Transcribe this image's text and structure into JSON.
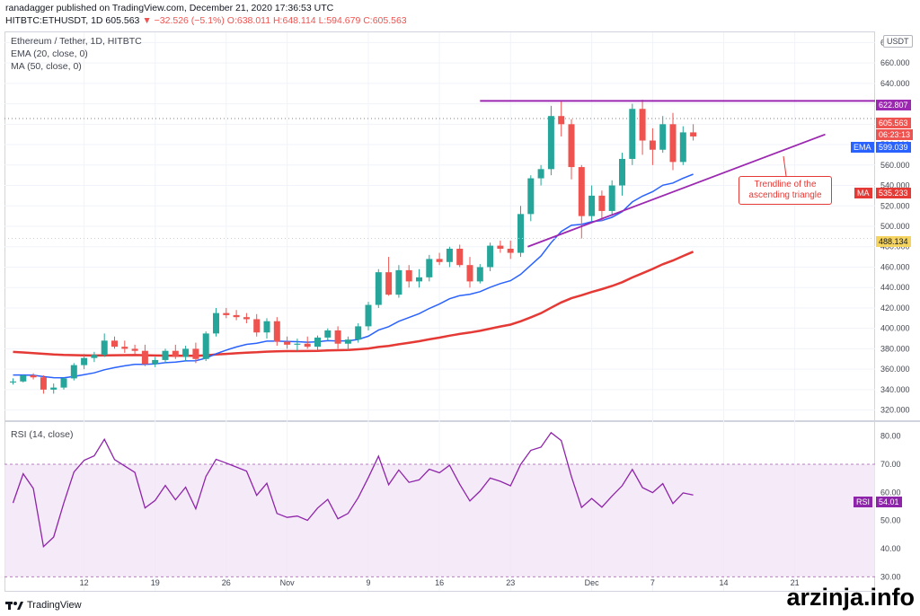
{
  "header": {
    "line1": "ranadagger published on TradingView.com, December 21, 2020 17:36:53 UTC",
    "line2_prefix": "HITBTC:ETHUSDT, 1D 605.563",
    "change": "−32.526 (−5.1%)",
    "ohlc": "O:638.011 H:648.114 L:594.679 C:605.563"
  },
  "legend": {
    "symbol": "Ethereum / Tether, 1D, HITBTC",
    "ema": "EMA (20, close, 0)",
    "ma": "MA (50, close, 0)",
    "rsi": "RSI (14, close)"
  },
  "currency": "USDT",
  "price_tags": {
    "resistance": "622.807",
    "last": "605.563",
    "countdown": "06:23:13",
    "ema_label": "EMA",
    "ema_value": "599.039",
    "ma_label": "MA",
    "ma_value": "535.233",
    "support": "488.134",
    "rsi_label": "RSI",
    "rsi_value": "54.01"
  },
  "annotation": {
    "line1": "Trendline of the",
    "line2": "ascending triangle"
  },
  "brand": "TradingView",
  "watermark": "arzinja.info",
  "colors": {
    "up": "#26a69a",
    "down": "#ef5350",
    "ema": "#2962ff",
    "ma": "#e53935",
    "trendline": "#9c27b0",
    "rsi_fill": "#f3e5f5",
    "rsi_line": "#8e24aa"
  },
  "chart_data": [
    {
      "type": "candlestick",
      "title": "Ethereum / Tether, 1D, HITBTC",
      "price_ticks": [
        320,
        340,
        360,
        380,
        400,
        420,
        440,
        460,
        480,
        500,
        520,
        540,
        560,
        580,
        600,
        620,
        640,
        660,
        680
      ],
      "price_tick_labels": [
        "320.000",
        "340.000",
        "360.000",
        "380.000",
        "400.000",
        "420.000",
        "440.000",
        "460.000",
        "480.000",
        "500.000",
        "520.000",
        "540.000",
        "560.000",
        "580.000",
        "600.000",
        "620.000",
        "640.000",
        "660.000",
        "680.000"
      ],
      "x_labels": [
        "12",
        "19",
        "26",
        "Nov",
        "9",
        "16",
        "23",
        "Dec",
        "7",
        "14",
        "21"
      ],
      "x_label_index": [
        7,
        14,
        21,
        27,
        35,
        42,
        49,
        57,
        63,
        70,
        77
      ],
      "ylim": [
        310,
        690
      ],
      "candles": [
        [
          347,
          351,
          345,
          348
        ],
        [
          348,
          355,
          347,
          354
        ],
        [
          354,
          356,
          350,
          352
        ],
        [
          352,
          354,
          336,
          340
        ],
        [
          340,
          346,
          336,
          342
        ],
        [
          342,
          352,
          340,
          351
        ],
        [
          351,
          366,
          349,
          364
        ],
        [
          364,
          375,
          360,
          371
        ],
        [
          371,
          377,
          367,
          374
        ],
        [
          374,
          395,
          372,
          388
        ],
        [
          388,
          392,
          380,
          382
        ],
        [
          382,
          388,
          376,
          380
        ],
        [
          380,
          384,
          375,
          378
        ],
        [
          378,
          384,
          363,
          365
        ],
        [
          365,
          372,
          362,
          369
        ],
        [
          369,
          380,
          366,
          378
        ],
        [
          378,
          384,
          370,
          372
        ],
        [
          372,
          383,
          368,
          380
        ],
        [
          380,
          386,
          366,
          370
        ],
        [
          370,
          397,
          368,
          395
        ],
        [
          395,
          420,
          392,
          415
        ],
        [
          415,
          420,
          410,
          413
        ],
        [
          413,
          418,
          408,
          411
        ],
        [
          411,
          415,
          405,
          409
        ],
        [
          409,
          414,
          392,
          396
        ],
        [
          396,
          410,
          390,
          407
        ],
        [
          407,
          411,
          383,
          387
        ],
        [
          387,
          392,
          380,
          384
        ],
        [
          384,
          390,
          378,
          385
        ],
        [
          385,
          392,
          380,
          382
        ],
        [
          382,
          393,
          378,
          391
        ],
        [
          391,
          400,
          388,
          398
        ],
        [
          398,
          402,
          380,
          385
        ],
        [
          385,
          392,
          378,
          389
        ],
        [
          389,
          405,
          386,
          402
        ],
        [
          402,
          426,
          398,
          423
        ],
        [
          423,
          458,
          420,
          455
        ],
        [
          455,
          470,
          432,
          433
        ],
        [
          433,
          462,
          430,
          457
        ],
        [
          457,
          462,
          440,
          446
        ],
        [
          446,
          458,
          440,
          450
        ],
        [
          450,
          472,
          446,
          468
        ],
        [
          468,
          474,
          462,
          465
        ],
        [
          465,
          480,
          460,
          478
        ],
        [
          478,
          482,
          460,
          462
        ],
        [
          462,
          470,
          440,
          446
        ],
        [
          446,
          463,
          444,
          460
        ],
        [
          460,
          484,
          456,
          481
        ],
        [
          481,
          486,
          474,
          478
        ],
        [
          478,
          486,
          468,
          474
        ],
        [
          474,
          520,
          470,
          512
        ],
        [
          512,
          550,
          505,
          547
        ],
        [
          547,
          560,
          540,
          556
        ],
        [
          556,
          618,
          550,
          608
        ],
        [
          608,
          623,
          588,
          600
        ],
        [
          600,
          605,
          546,
          558
        ],
        [
          558,
          560,
          488,
          510
        ],
        [
          510,
          540,
          505,
          530
        ],
        [
          530,
          535,
          505,
          515
        ],
        [
          515,
          545,
          510,
          540
        ],
        [
          540,
          572,
          530,
          566
        ],
        [
          566,
          620,
          560,
          615
        ],
        [
          615,
          624,
          570,
          584
        ],
        [
          584,
          596,
          560,
          575
        ],
        [
          575,
          608,
          572,
          600
        ],
        [
          600,
          611,
          555,
          563
        ],
        [
          563,
          598,
          560,
          592
        ],
        [
          592,
          600,
          584,
          588
        ]
      ]
    },
    {
      "type": "line",
      "title": "RSI (14, close)",
      "ticks": [
        30,
        40,
        50,
        60,
        70,
        80
      ],
      "tick_labels": [
        "30.00",
        "40.00",
        "50.00",
        "60.00",
        "70.00",
        "80.00"
      ],
      "ylim": [
        25,
        85
      ],
      "upper_band": 70,
      "lower_band": 30
    }
  ]
}
